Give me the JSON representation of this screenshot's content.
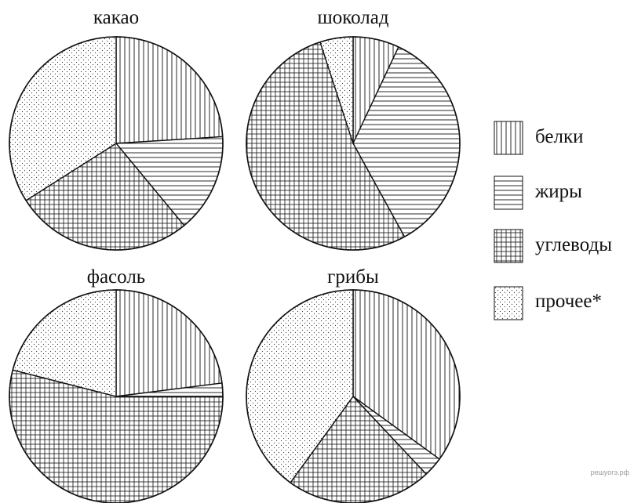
{
  "watermark": "решуогэ.рф",
  "colors": {
    "stroke": "#111111",
    "background": "#ffffff",
    "watermark": "#9a9a9a"
  },
  "legend": [
    {
      "key": "belki",
      "pattern": "vertical-lines",
      "label": "белки"
    },
    {
      "key": "zhiry",
      "pattern": "horizontal-lines",
      "label": "жиры"
    },
    {
      "key": "uglevody",
      "pattern": "grid",
      "label": "углеводы"
    },
    {
      "key": "prochee",
      "pattern": "dots",
      "label": "прочее*"
    }
  ],
  "chart_data": [
    {
      "type": "pie",
      "title": "какао",
      "slices": [
        {
          "label": "белки",
          "value": 24,
          "pattern": "vertical-lines"
        },
        {
          "label": "жиры",
          "value": 15,
          "pattern": "horizontal-lines"
        },
        {
          "label": "углеводы",
          "value": 27,
          "pattern": "grid"
        },
        {
          "label": "прочее*",
          "value": 34,
          "pattern": "dots"
        }
      ]
    },
    {
      "type": "pie",
      "title": "шоколад",
      "slices": [
        {
          "label": "белки",
          "value": 7,
          "pattern": "vertical-lines"
        },
        {
          "label": "жиры",
          "value": 35,
          "pattern": "horizontal-lines"
        },
        {
          "label": "углеводы",
          "value": 53,
          "pattern": "grid"
        },
        {
          "label": "прочее*",
          "value": 5,
          "pattern": "dots"
        }
      ]
    },
    {
      "type": "pie",
      "title": "фасоль",
      "slices": [
        {
          "label": "белки",
          "value": 23,
          "pattern": "vertical-lines"
        },
        {
          "label": "жиры",
          "value": 2,
          "pattern": "horizontal-lines"
        },
        {
          "label": "углеводы",
          "value": 54,
          "pattern": "grid"
        },
        {
          "label": "прочее*",
          "value": 21,
          "pattern": "dots"
        }
      ]
    },
    {
      "type": "pie",
      "title": "грибы",
      "slices": [
        {
          "label": "белки",
          "value": 35,
          "pattern": "vertical-lines"
        },
        {
          "label": "жиры",
          "value": 3,
          "pattern": "horizontal-lines"
        },
        {
          "label": "углеводы",
          "value": 22,
          "pattern": "grid"
        },
        {
          "label": "прочее*",
          "value": 40,
          "pattern": "dots"
        }
      ]
    }
  ]
}
